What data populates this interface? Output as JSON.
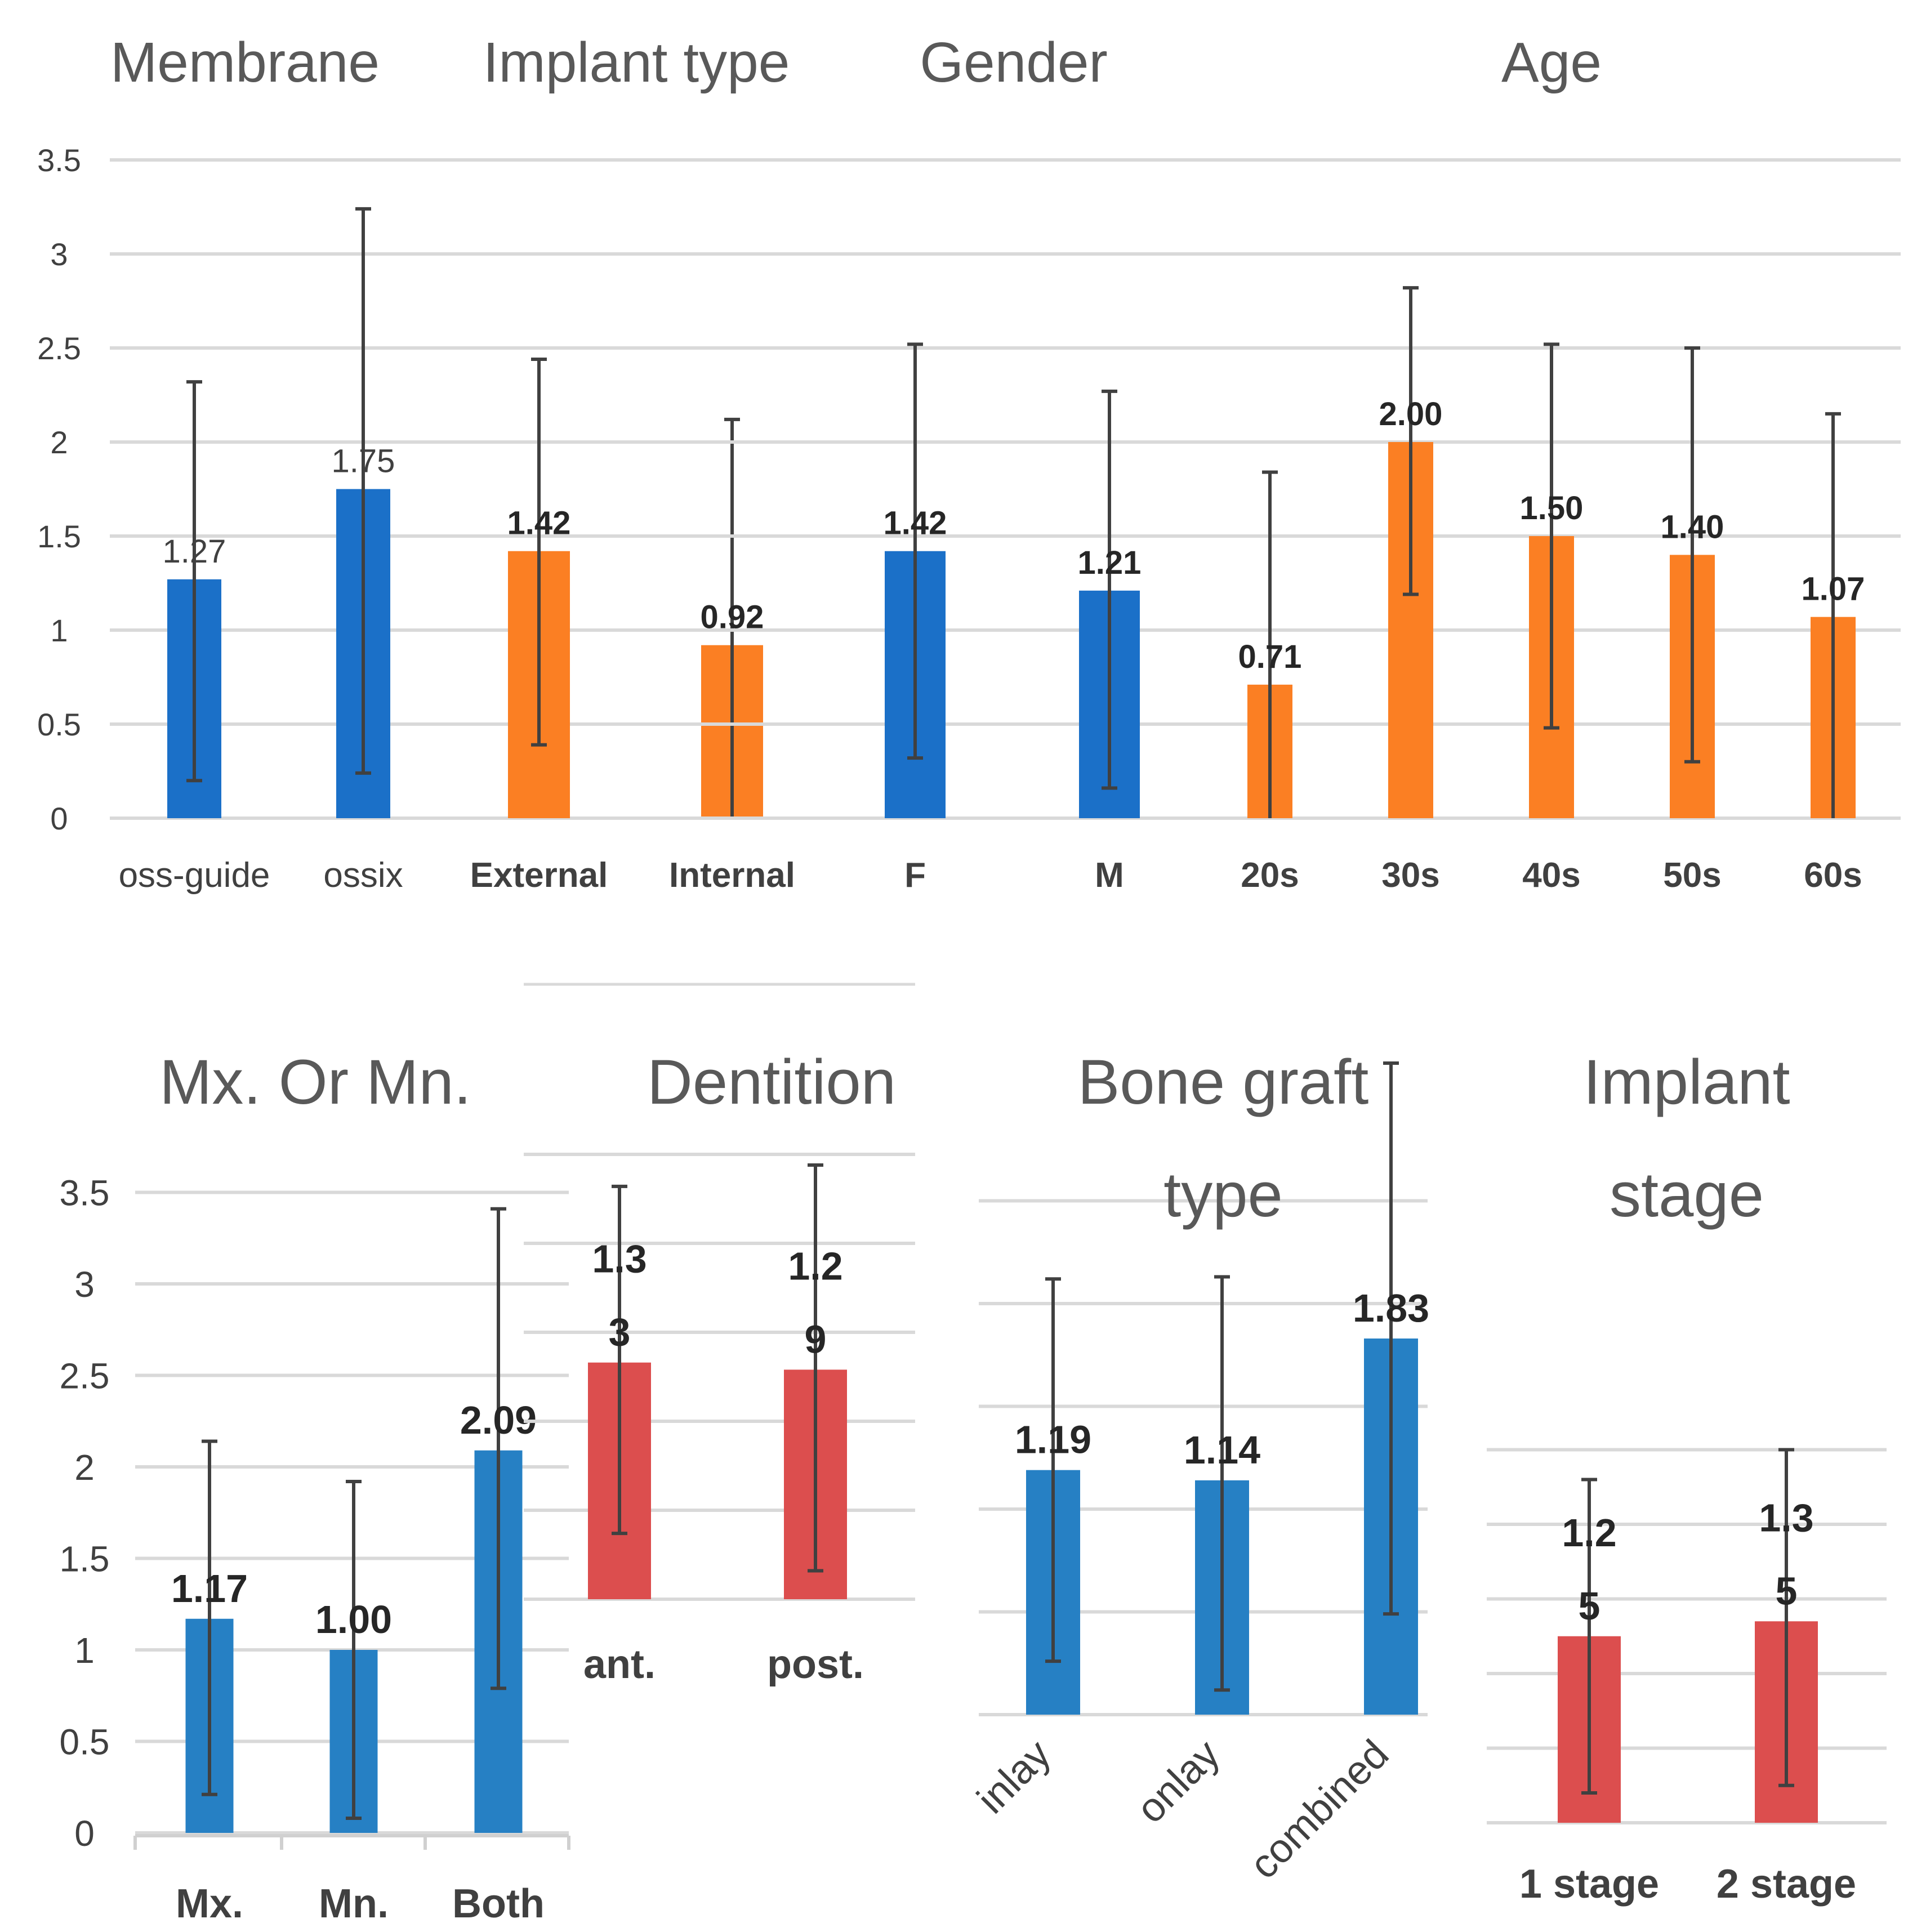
{
  "chart_data": [
    {
      "type": "bar",
      "title": "Membrane",
      "categories": [
        "oss-guide",
        "ossix"
      ],
      "values": [
        1.27,
        1.75
      ],
      "value_labels": [
        "1.27",
        "1.75"
      ],
      "error_bars": [
        [
          0.2,
          2.32
        ],
        [
          0.24,
          3.24
        ]
      ],
      "color": "#1b70c8",
      "ylim": [
        0,
        3.5
      ],
      "yticks": [
        "0",
        "0.5",
        "1",
        "1.5",
        "2",
        "2.5",
        "3",
        "3.5"
      ]
    },
    {
      "type": "bar",
      "title": "Implant type",
      "categories": [
        "External",
        "Internal"
      ],
      "values": [
        1.42,
        0.92
      ],
      "value_labels": [
        "1.42",
        "0.92"
      ],
      "error_bars": [
        [
          0.39,
          2.44
        ],
        [
          0,
          2.12
        ]
      ],
      "color": "#fb7f23",
      "ylim": [
        0,
        3.5
      ]
    },
    {
      "type": "bar",
      "title": "Gender",
      "categories": [
        "F",
        "M"
      ],
      "values": [
        1.42,
        1.21
      ],
      "value_labels": [
        "1.42",
        "1.21"
      ],
      "error_bars": [
        [
          0.32,
          2.52
        ],
        [
          0.16,
          2.27
        ]
      ],
      "color": "#1b70c8",
      "ylim": [
        0,
        3.5
      ]
    },
    {
      "type": "bar",
      "title": "Age",
      "categories": [
        "20s",
        "30s",
        "40s",
        "50s",
        "60s"
      ],
      "values": [
        0.71,
        2.0,
        1.5,
        1.4,
        1.07
      ],
      "value_labels": [
        "0.71",
        "2.00",
        "1.50",
        "1.40",
        "1.07"
      ],
      "error_bars": [
        [
          0,
          1.84
        ],
        [
          1.19,
          2.82
        ],
        [
          0.48,
          2.52
        ],
        [
          0.3,
          2.5
        ],
        [
          0,
          2.15
        ]
      ],
      "color": "#fb7f23",
      "ylim": [
        0,
        3.5
      ]
    },
    {
      "type": "bar",
      "title": "Mx. Or Mn.",
      "categories": [
        "Mx.",
        "Mn.",
        "Both"
      ],
      "values": [
        1.17,
        1.0,
        2.09
      ],
      "value_labels": [
        "1.17",
        "1.00",
        "2.09"
      ],
      "error_bars": [
        [
          0.21,
          2.14
        ],
        [
          0.08,
          1.92
        ],
        [
          0.79,
          3.41
        ]
      ],
      "color": "#2680c4",
      "ylim": [
        0,
        3.5
      ],
      "yticks": [
        "0",
        "0.5",
        "1",
        "1.5",
        "2",
        "2.5",
        "3",
        "3.5"
      ]
    },
    {
      "type": "bar",
      "title": "Dentition",
      "categories": [
        "ant.",
        "post."
      ],
      "values": [
        1.33,
        1.29
      ],
      "value_labels": [
        "1.3\n3",
        "1.2\n9"
      ],
      "error_bars": [
        [
          0.37,
          2.32
        ],
        [
          0.16,
          2.44
        ]
      ],
      "color": "#dc4e4e",
      "ylim": [
        0,
        2.5
      ]
    },
    {
      "type": "bar",
      "title": "Bone graft type",
      "categories": [
        "inlay",
        "onlay",
        "combined"
      ],
      "values": [
        1.19,
        1.14,
        1.83
      ],
      "value_labels": [
        "1.19",
        "1.14",
        "1.83"
      ],
      "error_bars": [
        [
          0.26,
          2.12
        ],
        [
          0.12,
          2.13
        ],
        [
          0.49,
          3.17
        ]
      ],
      "color": "#2680c4",
      "ylim": [
        0,
        4
      ]
    },
    {
      "type": "bar",
      "title": "Implant stage",
      "categories": [
        "1 stage",
        "2 stage"
      ],
      "values": [
        1.25,
        1.35
      ],
      "value_labels": [
        "1.2\n5",
        "1.3\n5"
      ],
      "error_bars": [
        [
          0.2,
          2.3
        ],
        [
          0.25,
          2.5
        ]
      ],
      "color": "#dc4e4e",
      "ylim": [
        0,
        3.5
      ]
    }
  ]
}
